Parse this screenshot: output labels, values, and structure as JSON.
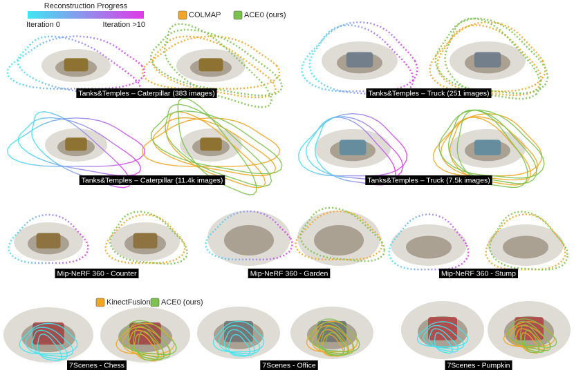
{
  "progress_legend": {
    "title": "Reconstruction Progress",
    "start": "Iteration 0",
    "end": "Iteration >10",
    "colors": [
      "#3fe6f2",
      "#e03ae6"
    ]
  },
  "legend_top": [
    {
      "label": "COLMAP",
      "color": "#f0a623"
    },
    {
      "label": "ACE0 (ours)",
      "color": "#7cc24e"
    }
  ],
  "legend_bottom": [
    {
      "label": "KinectFusion",
      "color": "#f0a623"
    },
    {
      "label": "ACE0 (ours)",
      "color": "#7cc24e"
    }
  ],
  "panels": [
    {
      "caption": "Tanks&Temples – Caterpillar (383 images)"
    },
    {
      "caption": "Tanks&Temples – Truck (251 images)"
    },
    {
      "caption": "Tanks&Temples – Caterpillar (11.4k images)"
    },
    {
      "caption": "Tanks&Temples – Truck (7.5k images)"
    },
    {
      "caption": "Mip-NeRF 360 - Counter"
    },
    {
      "caption": "Mip-NeRF 360 - Garden"
    },
    {
      "caption": "Mip-NeRF 360 - Stump"
    },
    {
      "caption": "7Scenes - Chess"
    },
    {
      "caption": "7Scenes - Office"
    },
    {
      "caption": "7Scenes - Pumpkin"
    }
  ]
}
